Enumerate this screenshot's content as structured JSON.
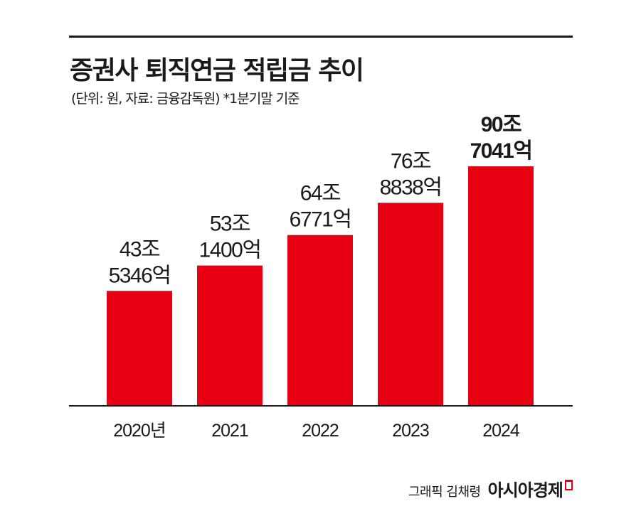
{
  "title": "증권사 퇴직연금 적립금 추이",
  "subtitle": "(단위: 원, 자료: 금융감독원)  *1분기말 기준",
  "credit": "그래픽 김채령",
  "brand": "아시아경제",
  "colors": {
    "bar": "#e60012",
    "text": "#1a1a1a",
    "axis": "#1a1a1a"
  },
  "chart_data": {
    "type": "bar",
    "categories": [
      "2020년",
      "2021",
      "2022",
      "2023",
      "2024"
    ],
    "values": [
      43.5346,
      53.14,
      64.6771,
      76.8838,
      90.7041
    ],
    "unit": "조 원",
    "labels": [
      [
        "43조",
        "5346억"
      ],
      [
        "53조",
        "1400억"
      ],
      [
        "64조",
        "6771억"
      ],
      [
        "76조",
        "8838억"
      ],
      [
        "90조",
        "7041억"
      ]
    ],
    "highlight_index": 4,
    "ylim": [
      0,
      100
    ],
    "grid": false,
    "legend": "none"
  }
}
